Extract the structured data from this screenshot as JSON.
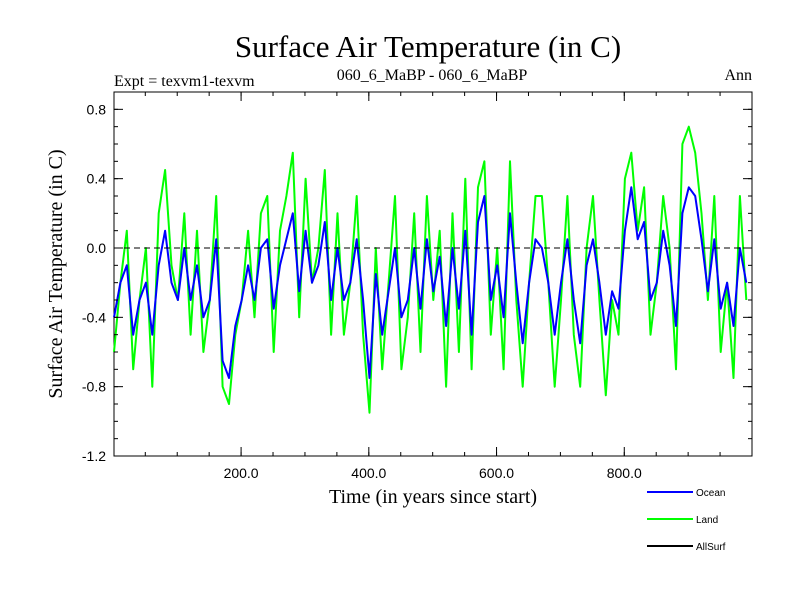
{
  "header": {
    "left": "Expt = texvm1-texvm",
    "center": "060_6_MaBP - 060_6_MaBP",
    "right": "Ann"
  },
  "chart_data": {
    "type": "line",
    "title": "Surface Air Temperature (in C)",
    "xlabel": "Time (in years since start)",
    "ylabel": "Surface Air Temperature (in C)",
    "xlim": [
      1,
      1000
    ],
    "ylim": [
      -1.2,
      0.9
    ],
    "x_ticks": [
      200,
      400,
      600,
      800
    ],
    "x_tick_labels": [
      "200.0",
      "400.0",
      "600.0",
      "800.0"
    ],
    "y_ticks": [
      -1.2,
      -0.8,
      -0.4,
      0.0,
      0.4,
      0.8
    ],
    "y_tick_labels": [
      "-1.2",
      "-0.8",
      "-0.4",
      "0.0",
      "0.4",
      "0.8"
    ],
    "reference_line": {
      "y": 0.0,
      "style": "dashed"
    },
    "legend": {
      "placement": "bottom-right"
    },
    "series": [
      {
        "name": "Land",
        "color": "#00ff00",
        "x_start": 1,
        "x_step": 10,
        "values": [
          -0.6,
          -0.2,
          0.1,
          -0.7,
          -0.3,
          0.0,
          -0.8,
          0.2,
          0.45,
          -0.1,
          -0.3,
          0.2,
          -0.5,
          0.1,
          -0.6,
          -0.3,
          0.3,
          -0.8,
          -0.9,
          -0.5,
          -0.3,
          0.1,
          -0.4,
          0.2,
          0.3,
          -0.6,
          0.1,
          0.3,
          0.55,
          -0.4,
          0.4,
          -0.2,
          0.0,
          0.45,
          -0.5,
          0.2,
          -0.5,
          -0.2,
          0.3,
          -0.5,
          -0.95,
          0.0,
          -0.7,
          -0.2,
          0.3,
          -0.7,
          -0.4,
          0.2,
          -0.6,
          0.3,
          -0.3,
          0.1,
          -0.8,
          0.2,
          -0.6,
          0.4,
          -0.7,
          0.35,
          0.5,
          -0.5,
          0.0,
          -0.7,
          0.5,
          -0.3,
          -0.8,
          -0.2,
          0.3,
          0.3,
          -0.2,
          -0.8,
          -0.3,
          0.3,
          -0.5,
          -0.8,
          0.0,
          0.3,
          -0.3,
          -0.85,
          -0.3,
          -0.5,
          0.4,
          0.55,
          0.1,
          0.35,
          -0.5,
          -0.2,
          0.3,
          0.0,
          -0.7,
          0.6,
          0.7,
          0.55,
          0.2,
          -0.3,
          0.3,
          -0.6,
          -0.2,
          -0.75,
          0.3,
          -0.3
        ]
      },
      {
        "name": "Ocean",
        "color": "#0000ff",
        "x_start": 1,
        "x_step": 10,
        "values": [
          -0.4,
          -0.2,
          -0.1,
          -0.5,
          -0.3,
          -0.2,
          -0.5,
          -0.1,
          0.1,
          -0.2,
          -0.3,
          0.0,
          -0.3,
          -0.1,
          -0.4,
          -0.3,
          0.05,
          -0.65,
          -0.75,
          -0.45,
          -0.3,
          -0.1,
          -0.3,
          0.0,
          0.05,
          -0.35,
          -0.1,
          0.05,
          0.2,
          -0.25,
          0.1,
          -0.2,
          -0.1,
          0.15,
          -0.3,
          0.0,
          -0.3,
          -0.2,
          0.05,
          -0.3,
          -0.75,
          -0.15,
          -0.5,
          -0.25,
          0.0,
          -0.4,
          -0.3,
          0.0,
          -0.35,
          0.05,
          -0.25,
          -0.05,
          -0.45,
          0.0,
          -0.35,
          0.1,
          -0.5,
          0.15,
          0.3,
          -0.3,
          -0.1,
          -0.4,
          0.2,
          -0.2,
          -0.55,
          -0.2,
          0.05,
          0.0,
          -0.2,
          -0.5,
          -0.2,
          0.05,
          -0.3,
          -0.55,
          -0.1,
          0.05,
          -0.2,
          -0.5,
          -0.25,
          -0.35,
          0.1,
          0.35,
          0.05,
          0.15,
          -0.3,
          -0.2,
          0.1,
          -0.1,
          -0.45,
          0.2,
          0.35,
          0.3,
          0.05,
          -0.25,
          0.05,
          -0.35,
          -0.2,
          -0.45,
          0.0,
          -0.2
        ]
      },
      {
        "name": "AllSurf",
        "color": "#000000",
        "x_start": 1,
        "x_step": 10,
        "values": []
      }
    ]
  }
}
